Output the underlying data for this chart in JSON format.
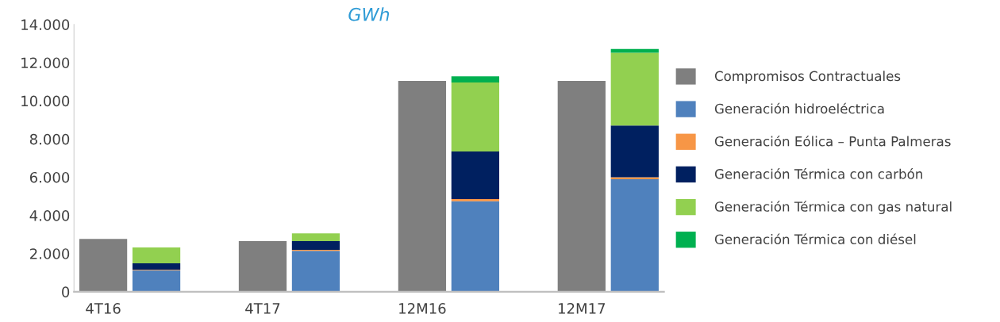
{
  "chart_data": {
    "type": "bar",
    "title": "GWh",
    "stacked": true,
    "legend": "right",
    "grid": false,
    "categories": [
      "4T16",
      null,
      "4T17",
      null,
      "12M16",
      null,
      "12M17",
      null
    ],
    "ylim": [
      0,
      14000
    ],
    "yticks": [
      0,
      {
        "value": 2000,
        "label": "2.000"
      },
      {
        "value": 4000,
        "label": "4.000"
      },
      {
        "value": 6000,
        "label": "6.000"
      },
      {
        "value": 8000,
        "label": "8.000"
      },
      {
        "value": 10000,
        "label": "10.000"
      },
      {
        "value": 12000,
        "label": "12.000"
      },
      {
        "value": 14000,
        "label": "14.000"
      }
    ],
    "series": [
      {
        "name": "Compromisos Contractuales",
        "color": "#7f7f7f",
        "values": [
          2770,
          null,
          2650,
          null,
          11040,
          null,
          11040,
          null
        ]
      },
      {
        "name": "Generación hidroeléctrica",
        "color": "#4f81bd",
        "values": [
          null,
          1130,
          null,
          2140,
          null,
          4740,
          null,
          5890
        ]
      },
      {
        "name": "Generación Eólica – Punta Palmeras",
        "color": "#f79646",
        "values": [
          null,
          30,
          null,
          50,
          null,
          110,
          null,
          110
        ]
      },
      {
        "name": "Generación Térmica con carbón",
        "color": "#002060",
        "values": [
          null,
          330,
          null,
          460,
          null,
          2500,
          null,
          2710
        ]
      },
      {
        "name": "Generación Térmica con gas natural",
        "color": "#92d050",
        "values": [
          null,
          830,
          null,
          410,
          null,
          3610,
          null,
          3810
        ]
      },
      {
        "name": "Generación Térmica con diésel",
        "color": "#00b050",
        "values": [
          null,
          0,
          null,
          0,
          null,
          320,
          null,
          200
        ]
      }
    ]
  }
}
